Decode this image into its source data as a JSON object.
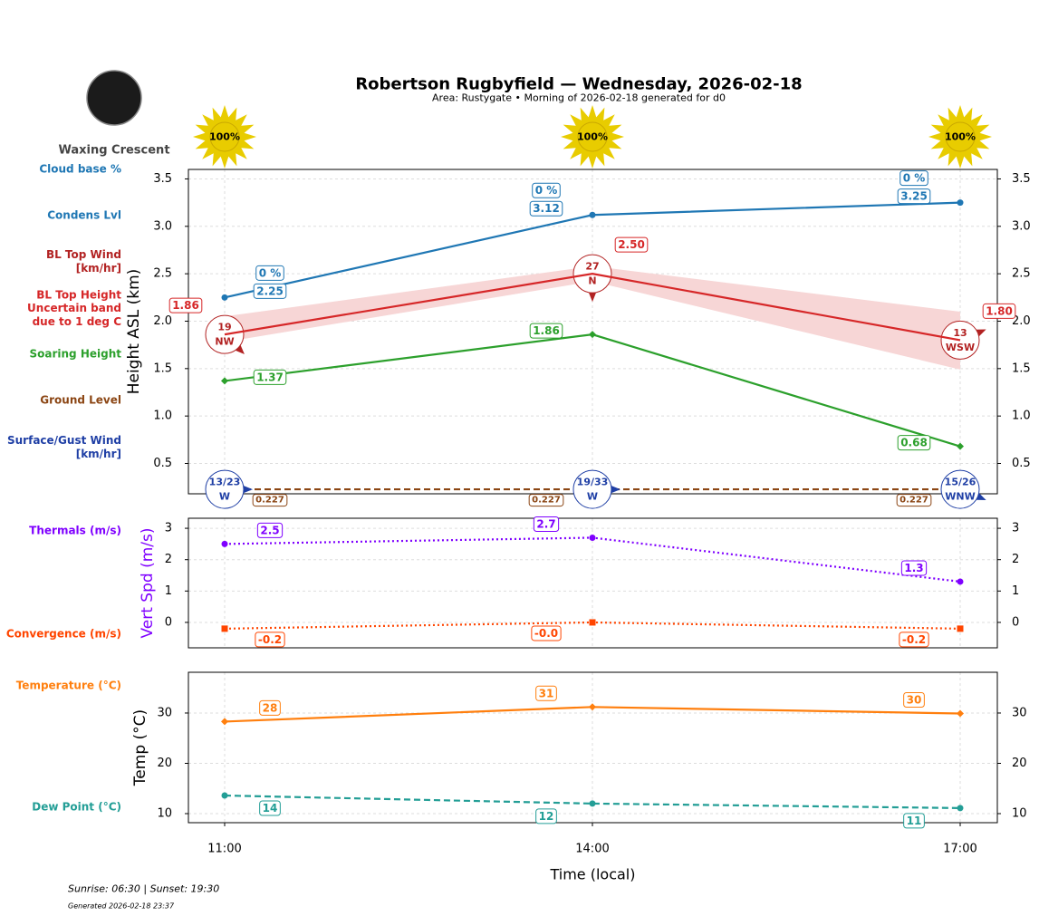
{
  "page": {
    "title": "Robertson Rugbyfield — Wednesday, 2026-02-18",
    "subtitle": "Area: Rustygate • Morning of 2026-02-18 generated for d0",
    "moon_phase": "Waxing Crescent",
    "sun_times": "Sunrise: 06:30 | Sunset: 19:30",
    "generated": "Generated 2026-02-18 23:37"
  },
  "chart_data": [
    {
      "type": "line",
      "ylabel": "Height ASL (km)",
      "ylim": [
        0.18,
        3.6
      ],
      "yticks": [
        0.5,
        {
          "value": 1,
          "label": "1.0"
        },
        1.5,
        {
          "value": 2,
          "label": "2.0"
        },
        2.5,
        {
          "value": 3,
          "label": "3.0"
        },
        3.5
      ],
      "grid": true,
      "sunshine": {
        "values": [
          100,
          100,
          100
        ],
        "value_labels": [
          "100%",
          "100%",
          "100%"
        ],
        "color": "#e8cc00"
      },
      "band": {
        "name": "Uncertain band\ndue to 1 deg C",
        "color": "#f7d6d6",
        "upper": [
          2.05,
          2.58,
          2.1
        ],
        "lower": [
          1.78,
          2.42,
          1.49
        ]
      },
      "series": [
        {
          "name": "Cloud base %",
          "color": "#1f77b4",
          "values": [
            0,
            0,
            0
          ],
          "value_labels": [
            "0 %",
            "0 %",
            "0 %"
          ],
          "style": "label"
        },
        {
          "name": "Condens Lvl",
          "color": "#1f77b4",
          "values": [
            2.25,
            3.12,
            3.25
          ],
          "linestyle": "solid",
          "marker": "circle"
        },
        {
          "name": "BL Top Wind\n[km/hr]",
          "color": "#b22222",
          "values": [
            19,
            27,
            13
          ],
          "directions": [
            "NW",
            "N",
            "WSW"
          ],
          "style": "wind"
        },
        {
          "name": "BL Top Height",
          "color": "#d62728",
          "values": [
            1.86,
            2.5,
            1.8
          ],
          "value_labels": [
            "1.86",
            "2.50",
            "1.80"
          ],
          "linestyle": "solid"
        },
        {
          "name": "Soaring Height",
          "color": "#2ca02c",
          "values": [
            1.37,
            1.86,
            0.68
          ],
          "linestyle": "solid",
          "marker": "diamond"
        },
        {
          "name": "Ground Level",
          "color": "#8b4513",
          "values": [
            0.227,
            0.227,
            0.227
          ],
          "linestyle": "dashed"
        },
        {
          "name": "Surface/Gust Wind\n[km/hr]",
          "color": "#1f3fa5",
          "values": [
            13,
            19,
            15
          ],
          "gusts": [
            23,
            33,
            26
          ],
          "value_labels": [
            "13/23",
            "19/33",
            "15/26"
          ],
          "directions": [
            "W",
            "W",
            "WNW"
          ],
          "style": "wind"
        }
      ]
    },
    {
      "type": "line",
      "ylabel": "Vert Spd (m/s)",
      "ylabel_color": "#7f00ff",
      "ylim": [
        -0.81,
        3.32
      ],
      "yticks": [
        0,
        1,
        2,
        3
      ],
      "grid": true,
      "series": [
        {
          "name": "Thermals (m/s)",
          "color": "#7f00ff",
          "values": [
            2.5,
            2.7,
            1.3
          ],
          "linestyle": "dotted",
          "marker": "circle"
        },
        {
          "name": "Convergence (m/s)",
          "color": "#ff4500",
          "values": [
            -0.2,
            0,
            -0.2
          ],
          "value_labels": [
            "-0.2",
            "-0.0",
            "-0.2"
          ],
          "linestyle": "dotted",
          "marker": "square"
        }
      ]
    },
    {
      "type": "line",
      "ylabel": "Temp (°C)",
      "xlabel": "Time (local)",
      "categories": [
        "11:00",
        "14:00",
        "17:00"
      ],
      "ylim": [
        8.2,
        38.1
      ],
      "yticks": [
        10,
        20,
        30
      ],
      "grid": true,
      "series": [
        {
          "name": "Temperature (°C)",
          "color": "#ff7f0e",
          "values": [
            28.3,
            31.2,
            29.9
          ],
          "value_labels": [
            "28",
            "31",
            "30"
          ],
          "linestyle": "solid",
          "marker": "diamond"
        },
        {
          "name": "Dew Point (°C)",
          "color": "#239e96",
          "values": [
            13.6,
            12.0,
            11.1
          ],
          "value_labels": [
            "14",
            "12",
            "11"
          ],
          "linestyle": "dashed",
          "marker": "circle"
        }
      ]
    }
  ]
}
